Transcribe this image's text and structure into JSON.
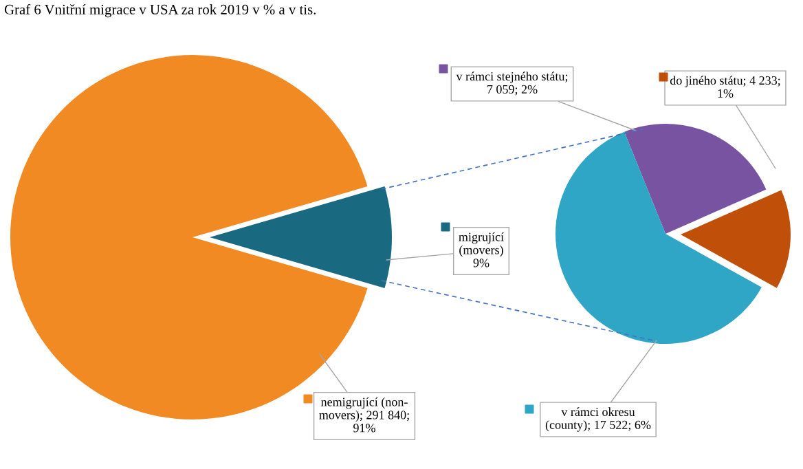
{
  "chart_data": [
    {
      "type": "pie",
      "title": "Graf 6 Vnitřní migrace v USA za rok 2019 v % a v tis.",
      "categories": [
        "nemigrující (non-\nmovers); 291 840;\n91%",
        "migrující\n(movers)\n9%"
      ],
      "values": [
        91,
        9
      ],
      "colors": [
        "#f18a22",
        "#196a80"
      ],
      "legend": "right"
    },
    {
      "type": "pie",
      "categories": [
        "v rámci stejného státu;\n7 059; 2%",
        "do jiného státu; 4 233;\n1%",
        "v rámci okresu\n(county); 17 522; 6%"
      ],
      "values": [
        7059,
        4233,
        17522
      ],
      "colors": [
        "#7853a2",
        "#c04f0a",
        "#2fa6c6"
      ],
      "legend": "bottom left"
    }
  ]
}
